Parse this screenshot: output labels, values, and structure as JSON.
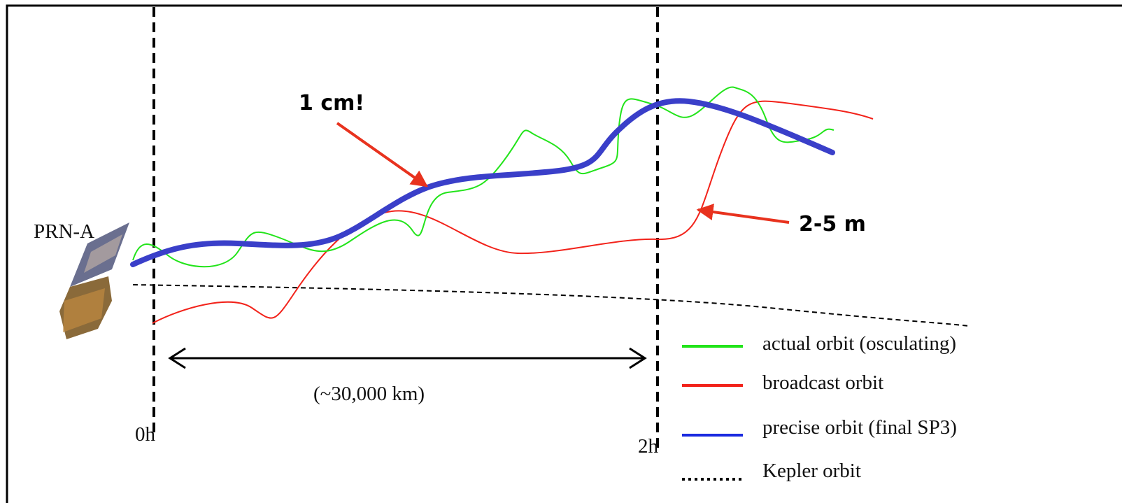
{
  "labels": {
    "satellite": "PRN-A",
    "precise_note": "1 cm!",
    "broadcast_note": "2-5 m",
    "span": "(~30,000 km)",
    "start": "0h",
    "end": "2h"
  },
  "legend": [
    {
      "label": "actual orbit (osculating)"
    },
    {
      "label": "broadcast orbit"
    },
    {
      "label": "precise orbit (final SP3)"
    },
    {
      "label": "Kepler orbit"
    }
  ]
}
